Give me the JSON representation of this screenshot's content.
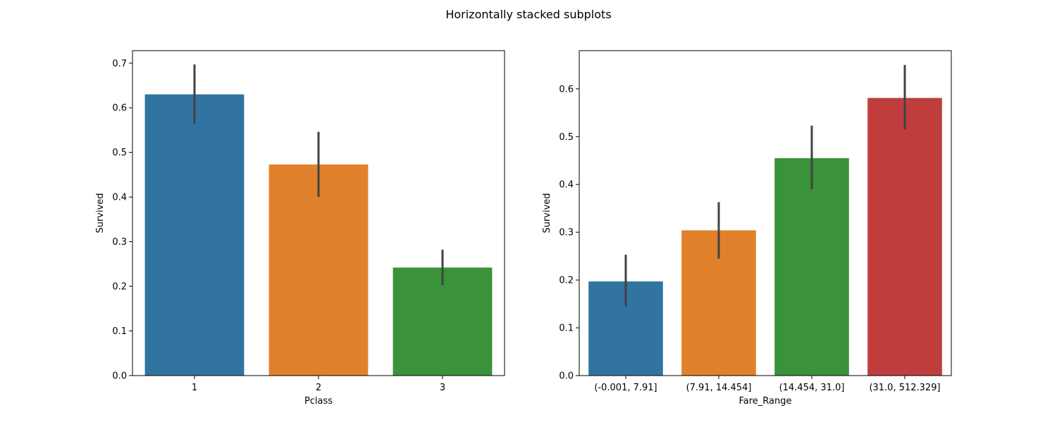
{
  "figure": {
    "title": "Horizontally stacked subplots"
  },
  "colors": {
    "blue": "#3274a1",
    "orange": "#e1812c",
    "green": "#3a923a",
    "red": "#c03d3e",
    "errorbar": "#424242",
    "axis": "#000000",
    "background": "#ffffff"
  },
  "chart_data": [
    {
      "type": "bar",
      "categories": [
        "1",
        "2",
        "3"
      ],
      "values": [
        0.63,
        0.473,
        0.242
      ],
      "error_low": [
        0.565,
        0.4,
        0.203
      ],
      "error_high": [
        0.697,
        0.546,
        0.282
      ],
      "xlabel": "Pclass",
      "ylabel": "Survived",
      "ylim": [
        0,
        0.728
      ],
      "yticks": [
        0.0,
        0.1,
        0.2,
        0.3,
        0.4,
        0.5,
        0.6,
        0.7
      ],
      "ytick_labels": [
        "0.0",
        "0.1",
        "0.2",
        "0.3",
        "0.4",
        "0.5",
        "0.6",
        "0.7"
      ],
      "grid": false,
      "bar_colors": [
        "#3274a1",
        "#e1812c",
        "#3a923a"
      ]
    },
    {
      "type": "bar",
      "categories": [
        "(-0.001, 7.91]",
        "(7.91, 14.454]",
        "(14.454, 31.0]",
        "(31.0, 512.329]"
      ],
      "values": [
        0.197,
        0.304,
        0.455,
        0.581
      ],
      "error_low": [
        0.145,
        0.245,
        0.39,
        0.515
      ],
      "error_high": [
        0.253,
        0.363,
        0.523,
        0.65
      ],
      "xlabel": "Fare_Range",
      "ylabel": "Survived",
      "ylim": [
        0,
        0.68
      ],
      "yticks": [
        0.0,
        0.1,
        0.2,
        0.3,
        0.4,
        0.5,
        0.6
      ],
      "ytick_labels": [
        "0.0",
        "0.1",
        "0.2",
        "0.3",
        "0.4",
        "0.5",
        "0.6"
      ],
      "grid": false,
      "bar_colors": [
        "#3274a1",
        "#e1812c",
        "#3a923a",
        "#c03d3e"
      ]
    }
  ]
}
